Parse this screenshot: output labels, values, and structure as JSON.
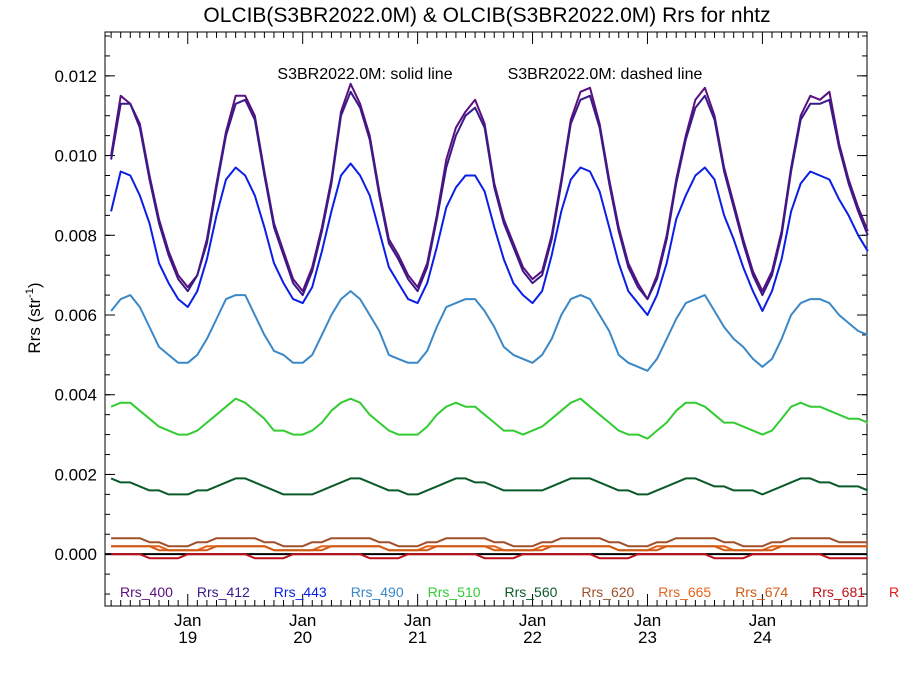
{
  "chart_data": {
    "type": "line",
    "title": "OLCIB(S3BR2022.0M) & OLCIB(S3BR2022.0M)  Rrs for nhtz",
    "subtitle_solid": "S3BR2022.0M: solid line",
    "subtitle_dashed": "S3BR2022.0M: dashed line",
    "ylabel": "Rrs (str",
    "ylabel_sup": "-1",
    "xlabel": "",
    "ylim": [
      -0.0013,
      0.0131
    ],
    "xlim": [
      2018.28,
      2024.91
    ],
    "yticks": [
      "0.000",
      "0.002",
      "0.004",
      "0.006",
      "0.008",
      "0.010",
      "0.012"
    ],
    "xticks": [
      {
        "month": "Jan",
        "year": "19",
        "x": 2019
      },
      {
        "month": "Jan",
        "year": "20",
        "x": 2020
      },
      {
        "month": "Jan",
        "year": "21",
        "x": 2021
      },
      {
        "month": "Jan",
        "year": "22",
        "x": 2022
      },
      {
        "month": "Jan",
        "year": "23",
        "x": 2023
      },
      {
        "month": "Jan",
        "year": "24",
        "x": 2024
      }
    ],
    "zero_line": true,
    "grid": false,
    "legend_position": "bottom-inside",
    "x": [
      2018.333,
      2018.417,
      2018.5,
      2018.583,
      2018.667,
      2018.75,
      2018.833,
      2018.917,
      2019.0,
      2019.083,
      2019.167,
      2019.25,
      2019.333,
      2019.417,
      2019.5,
      2019.583,
      2019.667,
      2019.75,
      2019.833,
      2019.917,
      2020.0,
      2020.083,
      2020.167,
      2020.25,
      2020.333,
      2020.417,
      2020.5,
      2020.583,
      2020.667,
      2020.75,
      2020.833,
      2020.917,
      2021.0,
      2021.083,
      2021.167,
      2021.25,
      2021.333,
      2021.417,
      2021.5,
      2021.583,
      2021.667,
      2021.75,
      2021.833,
      2021.917,
      2022.0,
      2022.083,
      2022.167,
      2022.25,
      2022.333,
      2022.417,
      2022.5,
      2022.583,
      2022.667,
      2022.75,
      2022.833,
      2022.917,
      2023.0,
      2023.083,
      2023.167,
      2023.25,
      2023.333,
      2023.417,
      2023.5,
      2023.583,
      2023.667,
      2023.75,
      2023.833,
      2023.917,
      2024.0,
      2024.083,
      2024.167,
      2024.25,
      2024.333,
      2024.417,
      2024.5,
      2024.583,
      2024.667,
      2024.75,
      2024.833,
      2024.917
    ],
    "series": [
      {
        "name": "Rrs_400",
        "color": "#5a1080",
        "style": "solid",
        "values": [
          0.01,
          0.0115,
          0.0113,
          0.0108,
          0.0095,
          0.0084,
          0.0076,
          0.007,
          0.0067,
          0.007,
          0.0079,
          0.0093,
          0.0106,
          0.0115,
          0.0115,
          0.011,
          0.0096,
          0.0083,
          0.0076,
          0.0069,
          0.0066,
          0.0072,
          0.0082,
          0.0094,
          0.0111,
          0.0118,
          0.0113,
          0.0105,
          0.0091,
          0.0079,
          0.0075,
          0.007,
          0.0067,
          0.0073,
          0.0085,
          0.0099,
          0.0107,
          0.0111,
          0.0114,
          0.0108,
          0.0093,
          0.0084,
          0.0078,
          0.0072,
          0.0069,
          0.0071,
          0.008,
          0.0094,
          0.0109,
          0.0116,
          0.0117,
          0.0108,
          0.0094,
          0.0082,
          0.0073,
          0.0068,
          0.0064,
          0.007,
          0.008,
          0.0094,
          0.0105,
          0.0114,
          0.0117,
          0.011,
          0.0097,
          0.0088,
          0.0079,
          0.0071,
          0.0066,
          0.0071,
          0.0081,
          0.0097,
          0.011,
          0.0115,
          0.0114,
          0.0116,
          0.0103,
          0.0094,
          0.0087,
          0.0081
        ]
      },
      {
        "name": "Rrs_412",
        "color": "#3a1a88",
        "style": "solid",
        "values": [
          0.0099,
          0.0113,
          0.0113,
          0.0107,
          0.0094,
          0.0083,
          0.0075,
          0.0069,
          0.0066,
          0.007,
          0.0078,
          0.0092,
          0.0105,
          0.0113,
          0.0114,
          0.0109,
          0.0095,
          0.0082,
          0.0075,
          0.0068,
          0.0065,
          0.0071,
          0.0081,
          0.0093,
          0.011,
          0.0116,
          0.0112,
          0.0104,
          0.009,
          0.0078,
          0.0074,
          0.0069,
          0.0066,
          0.0072,
          0.0084,
          0.0097,
          0.0105,
          0.011,
          0.0112,
          0.0107,
          0.0092,
          0.0083,
          0.0077,
          0.0071,
          0.0068,
          0.007,
          0.0079,
          0.0093,
          0.0108,
          0.0114,
          0.0115,
          0.0107,
          0.0093,
          0.0081,
          0.0072,
          0.0067,
          0.0064,
          0.0069,
          0.0079,
          0.0093,
          0.0104,
          0.0112,
          0.0115,
          0.0109,
          0.0096,
          0.0087,
          0.0078,
          0.007,
          0.0065,
          0.007,
          0.008,
          0.0096,
          0.0109,
          0.0113,
          0.0113,
          0.0114,
          0.0102,
          0.0093,
          0.0086,
          0.008
        ]
      },
      {
        "name": "Rrs_443",
        "color": "#0a1ee6",
        "style": "solid",
        "values": [
          0.0086,
          0.0096,
          0.0095,
          0.009,
          0.0083,
          0.0073,
          0.0068,
          0.0064,
          0.0062,
          0.0066,
          0.0074,
          0.0085,
          0.0094,
          0.0097,
          0.0095,
          0.009,
          0.0082,
          0.0073,
          0.0068,
          0.0064,
          0.0063,
          0.0067,
          0.0076,
          0.0086,
          0.0095,
          0.0098,
          0.0095,
          0.009,
          0.0081,
          0.0072,
          0.0068,
          0.0064,
          0.0063,
          0.0068,
          0.0077,
          0.0087,
          0.0092,
          0.0095,
          0.0095,
          0.0091,
          0.0082,
          0.0074,
          0.0068,
          0.0065,
          0.0063,
          0.0066,
          0.0075,
          0.0086,
          0.0094,
          0.0097,
          0.0096,
          0.0091,
          0.0082,
          0.0073,
          0.0066,
          0.0063,
          0.006,
          0.0065,
          0.0073,
          0.0084,
          0.009,
          0.0095,
          0.0097,
          0.0094,
          0.0085,
          0.0079,
          0.0072,
          0.0066,
          0.0061,
          0.0066,
          0.0074,
          0.0086,
          0.0093,
          0.0096,
          0.0095,
          0.0094,
          0.0089,
          0.0085,
          0.008,
          0.0076
        ]
      },
      {
        "name": "Rrs_490",
        "color": "#3a88c8",
        "style": "solid",
        "values": [
          0.0061,
          0.0064,
          0.0065,
          0.0062,
          0.0057,
          0.0052,
          0.005,
          0.0048,
          0.0048,
          0.005,
          0.0054,
          0.0059,
          0.0064,
          0.0065,
          0.0065,
          0.006,
          0.0055,
          0.0051,
          0.005,
          0.0048,
          0.0048,
          0.005,
          0.0055,
          0.006,
          0.0064,
          0.0066,
          0.0064,
          0.006,
          0.0056,
          0.005,
          0.0049,
          0.0048,
          0.0048,
          0.0051,
          0.0057,
          0.0062,
          0.0063,
          0.0064,
          0.0064,
          0.0061,
          0.0057,
          0.0052,
          0.005,
          0.0049,
          0.0048,
          0.005,
          0.0054,
          0.006,
          0.0064,
          0.0065,
          0.0064,
          0.006,
          0.0056,
          0.005,
          0.0048,
          0.0047,
          0.0046,
          0.0049,
          0.0054,
          0.0059,
          0.0063,
          0.0064,
          0.0065,
          0.0061,
          0.0057,
          0.0054,
          0.0052,
          0.0049,
          0.0047,
          0.0049,
          0.0054,
          0.006,
          0.0063,
          0.0064,
          0.0064,
          0.0063,
          0.006,
          0.0058,
          0.0056,
          0.0055
        ]
      },
      {
        "name": "Rrs_510",
        "color": "#33cc33",
        "style": "solid",
        "values": [
          0.0037,
          0.0038,
          0.0038,
          0.0036,
          0.0034,
          0.0032,
          0.0031,
          0.003,
          0.003,
          0.0031,
          0.0033,
          0.0035,
          0.0037,
          0.0039,
          0.0038,
          0.0036,
          0.0034,
          0.0031,
          0.0031,
          0.003,
          0.003,
          0.0031,
          0.0033,
          0.0036,
          0.0038,
          0.0039,
          0.0038,
          0.0035,
          0.0033,
          0.0031,
          0.003,
          0.003,
          0.003,
          0.0032,
          0.0035,
          0.0037,
          0.0038,
          0.0037,
          0.0037,
          0.0035,
          0.0033,
          0.0031,
          0.0031,
          0.003,
          0.0031,
          0.0032,
          0.0034,
          0.0036,
          0.0038,
          0.0039,
          0.0037,
          0.0035,
          0.0033,
          0.0031,
          0.003,
          0.003,
          0.0029,
          0.0031,
          0.0033,
          0.0036,
          0.0038,
          0.0038,
          0.0037,
          0.0035,
          0.0033,
          0.0033,
          0.0032,
          0.0031,
          0.003,
          0.0031,
          0.0034,
          0.0037,
          0.0038,
          0.0037,
          0.0037,
          0.0036,
          0.0035,
          0.0034,
          0.0034,
          0.0033
        ]
      },
      {
        "name": "Rrs_560",
        "color": "#0a5a2a",
        "style": "solid",
        "values": [
          0.0019,
          0.0018,
          0.0018,
          0.0017,
          0.0016,
          0.0016,
          0.0015,
          0.0015,
          0.0015,
          0.0016,
          0.0016,
          0.0017,
          0.0018,
          0.0019,
          0.0019,
          0.0018,
          0.0017,
          0.0016,
          0.0015,
          0.0015,
          0.0015,
          0.0015,
          0.0016,
          0.0017,
          0.0018,
          0.0019,
          0.0019,
          0.0018,
          0.0017,
          0.0016,
          0.0016,
          0.0015,
          0.0015,
          0.0016,
          0.0017,
          0.0018,
          0.0019,
          0.0019,
          0.0018,
          0.0018,
          0.0017,
          0.0016,
          0.0016,
          0.0016,
          0.0016,
          0.0016,
          0.0017,
          0.0018,
          0.0019,
          0.0019,
          0.0019,
          0.0018,
          0.0017,
          0.0016,
          0.0016,
          0.0015,
          0.0015,
          0.0016,
          0.0017,
          0.0018,
          0.0019,
          0.0019,
          0.0018,
          0.0017,
          0.0017,
          0.0016,
          0.0016,
          0.0016,
          0.0015,
          0.0016,
          0.0017,
          0.0018,
          0.0019,
          0.0019,
          0.0018,
          0.0018,
          0.0017,
          0.0017,
          0.0017,
          0.0016
        ]
      },
      {
        "name": "Rrs_620",
        "color": "#a0502a",
        "style": "solid",
        "values": [
          0.0004,
          0.0004,
          0.0004,
          0.0004,
          0.0003,
          0.0003,
          0.0002,
          0.0002,
          0.0002,
          0.0003,
          0.0003,
          0.0004,
          0.0004,
          0.0004,
          0.0004,
          0.0004,
          0.0003,
          0.0003,
          0.0002,
          0.0002,
          0.0002,
          0.0003,
          0.0003,
          0.0004,
          0.0004,
          0.0004,
          0.0004,
          0.0004,
          0.0003,
          0.0003,
          0.0002,
          0.0002,
          0.0002,
          0.0003,
          0.0003,
          0.0004,
          0.0004,
          0.0004,
          0.0004,
          0.0004,
          0.0003,
          0.0003,
          0.0002,
          0.0002,
          0.0002,
          0.0003,
          0.0003,
          0.0004,
          0.0004,
          0.0004,
          0.0004,
          0.0004,
          0.0003,
          0.0003,
          0.0002,
          0.0002,
          0.0002,
          0.0003,
          0.0003,
          0.0004,
          0.0004,
          0.0004,
          0.0004,
          0.0004,
          0.0003,
          0.0003,
          0.0002,
          0.0002,
          0.0002,
          0.0003,
          0.0003,
          0.0004,
          0.0004,
          0.0004,
          0.0004,
          0.0004,
          0.0003,
          0.0003,
          0.0003,
          0.0003
        ]
      },
      {
        "name": "Rrs_665",
        "color": "#e8641c",
        "style": "solid",
        "values": [
          0.0002,
          0.0002,
          0.0002,
          0.0002,
          0.0002,
          0.0002,
          0.0001,
          0.0001,
          0.0001,
          0.0001,
          0.0002,
          0.0002,
          0.0002,
          0.0002,
          0.0002,
          0.0002,
          0.0002,
          0.0001,
          0.0001,
          0.0001,
          0.0001,
          0.0001,
          0.0002,
          0.0002,
          0.0002,
          0.0002,
          0.0002,
          0.0002,
          0.0002,
          0.0001,
          0.0001,
          0.0001,
          0.0001,
          0.0002,
          0.0002,
          0.0002,
          0.0002,
          0.0002,
          0.0002,
          0.0002,
          0.0002,
          0.0001,
          0.0001,
          0.0001,
          0.0001,
          0.0002,
          0.0002,
          0.0002,
          0.0002,
          0.0002,
          0.0002,
          0.0002,
          0.0002,
          0.0001,
          0.0001,
          0.0001,
          0.0001,
          0.0002,
          0.0002,
          0.0002,
          0.0002,
          0.0002,
          0.0002,
          0.0002,
          0.0002,
          0.0001,
          0.0001,
          0.0001,
          0.0001,
          0.0002,
          0.0002,
          0.0002,
          0.0002,
          0.0002,
          0.0002,
          0.0002,
          0.0002,
          0.0002,
          0.0002,
          0.0002
        ]
      },
      {
        "name": "Rrs_674",
        "color": "#d05a14",
        "style": "solid",
        "values": [
          0.0002,
          0.0002,
          0.0002,
          0.0002,
          0.0002,
          0.0001,
          0.0001,
          0.0001,
          0.0001,
          0.0001,
          0.0001,
          0.0002,
          0.0002,
          0.0002,
          0.0002,
          0.0002,
          0.0002,
          0.0001,
          0.0001,
          0.0001,
          0.0001,
          0.0001,
          0.0001,
          0.0002,
          0.0002,
          0.0002,
          0.0002,
          0.0002,
          0.0002,
          0.0001,
          0.0001,
          0.0001,
          0.0001,
          0.0001,
          0.0002,
          0.0002,
          0.0002,
          0.0002,
          0.0002,
          0.0002,
          0.0001,
          0.0001,
          0.0001,
          0.0001,
          0.0001,
          0.0001,
          0.0002,
          0.0002,
          0.0002,
          0.0002,
          0.0002,
          0.0002,
          0.0002,
          0.0001,
          0.0001,
          0.0001,
          0.0001,
          0.0001,
          0.0002,
          0.0002,
          0.0002,
          0.0002,
          0.0002,
          0.0002,
          0.0001,
          0.0001,
          0.0001,
          0.0001,
          0.0001,
          0.0001,
          0.0002,
          0.0002,
          0.0002,
          0.0002,
          0.0002,
          0.0002,
          0.0002,
          0.0002,
          0.0002,
          0.0002
        ]
      },
      {
        "name": "Rrs_681",
        "color": "#c0101a",
        "style": "solid",
        "values": [
          0.0,
          0.0,
          0.0,
          0.0,
          -0.0001,
          -0.0001,
          -0.0001,
          -0.0001,
          0.0,
          0.0,
          0.0,
          0.0,
          0.0,
          0.0,
          0.0,
          -0.0001,
          -0.0001,
          -0.0001,
          -0.0001,
          0.0,
          0.0,
          0.0,
          0.0,
          0.0,
          0.0,
          0.0,
          0.0,
          -0.0001,
          -0.0001,
          -0.0001,
          -0.0001,
          0.0,
          0.0,
          0.0,
          0.0,
          0.0,
          0.0,
          0.0,
          0.0,
          -0.0001,
          -0.0001,
          -0.0001,
          -0.0001,
          0.0,
          0.0,
          0.0,
          0.0,
          0.0,
          0.0,
          0.0,
          0.0,
          -0.0001,
          -0.0001,
          -0.0001,
          -0.0001,
          0.0,
          0.0,
          0.0,
          0.0,
          0.0,
          0.0,
          0.0,
          0.0,
          -0.0001,
          -0.0001,
          -0.0001,
          -0.0001,
          0.0,
          0.0,
          0.0,
          0.0,
          0.0,
          0.0,
          0.0,
          0.0,
          -0.0001,
          -0.0001,
          -0.0001,
          -0.0001,
          -0.0001
        ]
      }
    ],
    "legend_labels": [
      {
        "text": "Rrs_400",
        "color": "#5a1080"
      },
      {
        "text": "Rrs_412",
        "color": "#3a1a88"
      },
      {
        "text": "Rrs_443",
        "color": "#0a1ee6"
      },
      {
        "text": "Rrs_490",
        "color": "#3a88c8"
      },
      {
        "text": "Rrs_510",
        "color": "#33cc33"
      },
      {
        "text": "Rrs_560",
        "color": "#0a5a2a"
      },
      {
        "text": "Rrs_620",
        "color": "#a0502a"
      },
      {
        "text": "Rrs_665",
        "color": "#e8641c"
      },
      {
        "text": "Rrs_674",
        "color": "#d05a14"
      },
      {
        "text": "Rrs_681",
        "color": "#c0101a"
      },
      {
        "text": "Rr",
        "color": "#e01a1a"
      }
    ]
  }
}
